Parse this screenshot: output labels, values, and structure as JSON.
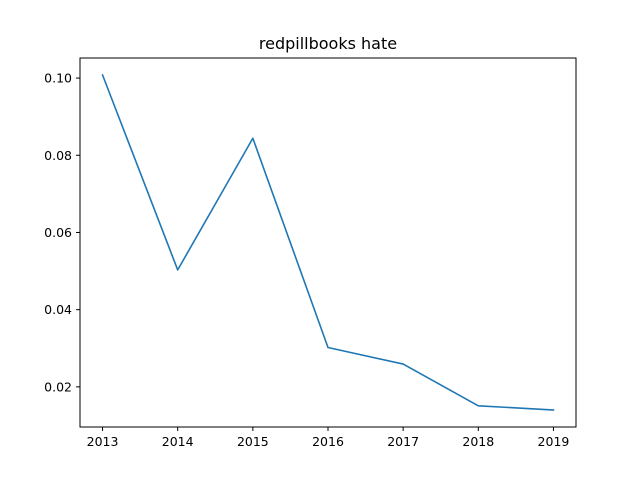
{
  "chart_data": {
    "type": "line",
    "title": "redpillbooks hate",
    "xlabel": "",
    "ylabel": "",
    "x": [
      2013,
      2014,
      2015,
      2016,
      2017,
      2018,
      2019
    ],
    "series": [
      {
        "values": [
          0.1008,
          0.0503,
          0.0844,
          0.0302,
          0.0259,
          0.0151,
          0.014
        ],
        "color": "#1f77b4"
      }
    ],
    "xlim": [
      2012.7,
      2019.3
    ],
    "ylim": [
      0.0096,
      0.1052
    ],
    "xticks": [
      2013,
      2014,
      2015,
      2016,
      2017,
      2018,
      2019
    ],
    "yticks": [
      0.02,
      0.04,
      0.06,
      0.08,
      0.1
    ],
    "ytick_labels": [
      "0.02",
      "0.04",
      "0.06",
      "0.08",
      "0.10"
    ],
    "grid": false,
    "legend": "none"
  }
}
